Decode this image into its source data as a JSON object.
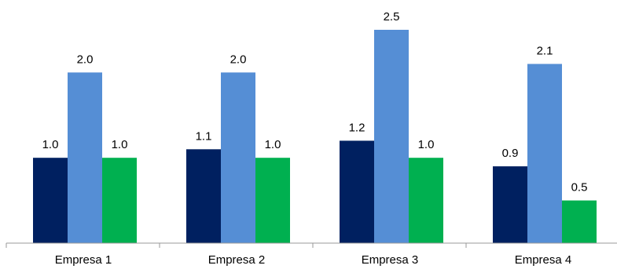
{
  "chart_data": {
    "type": "bar",
    "categories": [
      "Empresa 1",
      "Empresa 2",
      "Empresa 3",
      "Empresa 4"
    ],
    "series": [
      {
        "values": [
          1.0,
          1.1,
          1.2,
          0.9
        ],
        "labels": [
          "1.0",
          "1.1",
          "1.2",
          "0.9"
        ],
        "color": "#002060"
      },
      {
        "values": [
          2.0,
          2.0,
          2.5,
          2.1
        ],
        "labels": [
          "2.0",
          "2.0",
          "2.5",
          "2.1"
        ],
        "color": "#558ED5"
      },
      {
        "values": [
          1.0,
          1.0,
          1.0,
          0.5
        ],
        "labels": [
          "1.0",
          "1.0",
          "1.0",
          "0.5"
        ],
        "color": "#00B050"
      }
    ],
    "title": "",
    "xlabel": "",
    "ylabel": "",
    "ylim": [
      0,
      2.5
    ],
    "grid": false,
    "legend": "none"
  }
}
